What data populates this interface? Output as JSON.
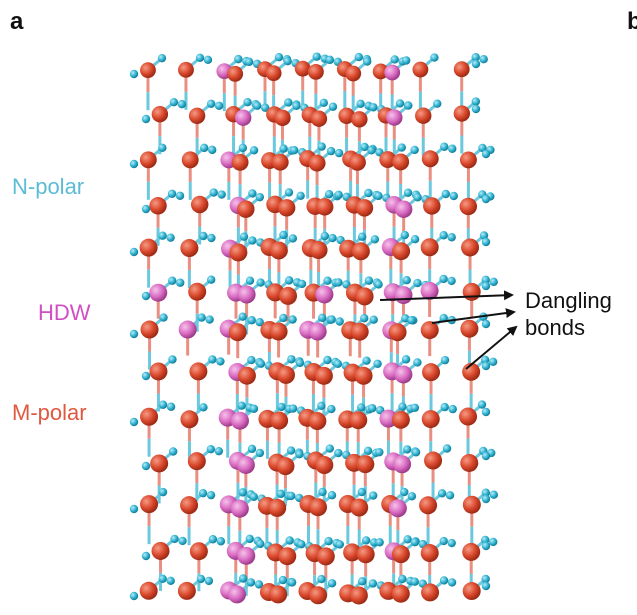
{
  "panels": {
    "left": "a",
    "right": "b"
  },
  "regions": [
    {
      "label": "N-polar",
      "color": "#5bbcd6"
    },
    {
      "label": "HDW",
      "color": "#d24fc3"
    },
    {
      "label": "M-polar",
      "color": "#e0583f"
    }
  ],
  "annotation": {
    "line1": "Dangling",
    "line2": "bonds"
  },
  "colors": {
    "metal_atom": "#d9472b",
    "hdw_atom": "#d96bc2",
    "nitrogen_atom": "#2fb3d1",
    "bond_metal": "#e88f82",
    "bond_nitrogen": "#6cc8dc",
    "arrow": "#111111"
  }
}
